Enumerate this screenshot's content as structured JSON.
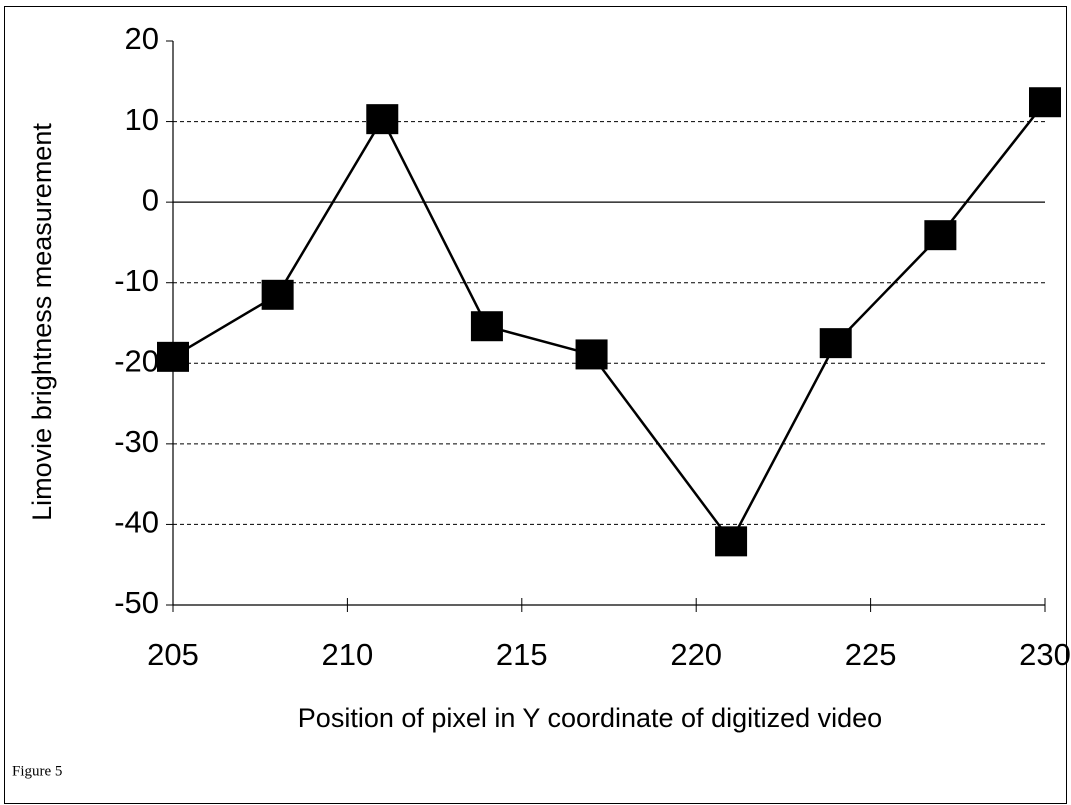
{
  "chart_data": {
    "type": "line",
    "x": [
      205,
      208,
      211,
      214,
      217,
      221,
      224,
      227,
      230
    ],
    "series": [
      {
        "name": "Limovie brightness measurement",
        "color": "#000000",
        "values": [
          -19.2,
          -11.5,
          10.3,
          -15.4,
          -18.9,
          -42.1,
          -17.5,
          -4.1,
          12.4
        ]
      }
    ],
    "xlim": [
      205,
      230
    ],
    "xticks": [
      205,
      210,
      215,
      220,
      225,
      230
    ],
    "ylim": [
      -50,
      20
    ],
    "yticks": [
      -50,
      -40,
      -30,
      -20,
      -10,
      0,
      10,
      20
    ],
    "grid": true,
    "xlabel": "Position of pixel in Y coordinate of digitized video",
    "ylabel": "Limovie brightness measurement",
    "caption": "Figure 5"
  }
}
